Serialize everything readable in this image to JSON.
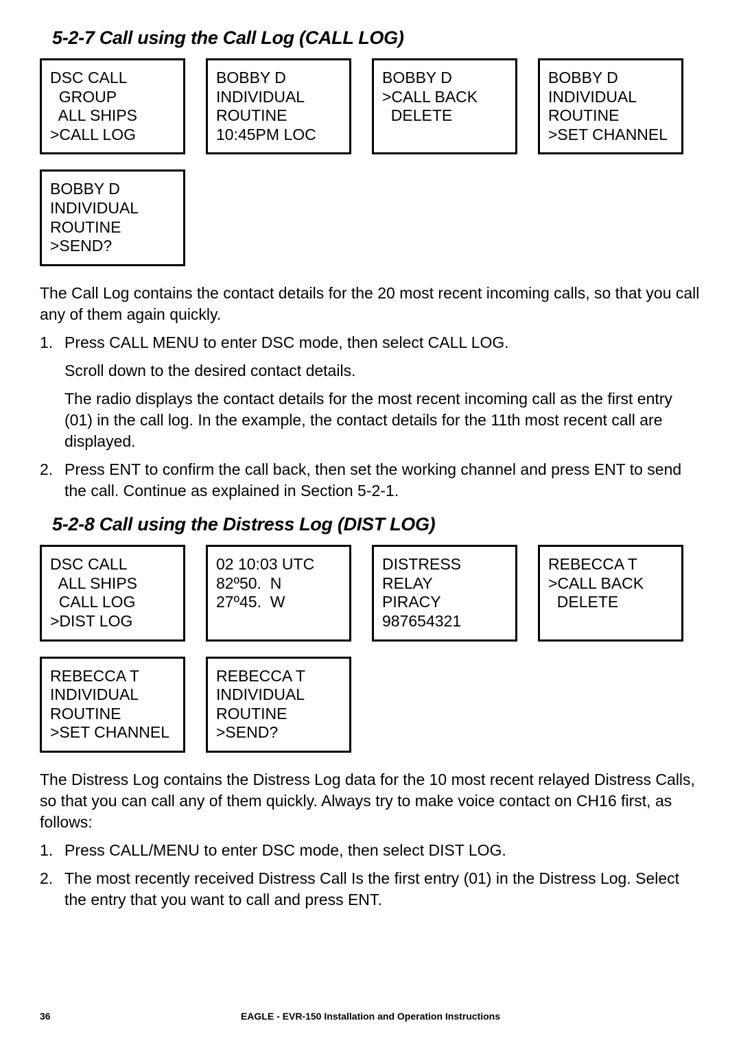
{
  "section527": {
    "title": "5-2-7 Call using the Call Log (CALL LOG)",
    "screens": [
      {
        "lines": [
          "DSC CALL",
          "  GROUP",
          "  ALL SHIPS",
          ">CALL LOG"
        ]
      },
      {
        "lines": [
          "BOBBY D",
          "INDIVIDUAL",
          "ROUTINE",
          "10:45PM LOC"
        ]
      },
      {
        "lines": [
          "BOBBY D",
          ">CALL BACK",
          "  DELETE"
        ]
      },
      {
        "lines": [
          "BOBBY D",
          "INDIVIDUAL",
          "ROUTINE",
          ">SET CHANNEL"
        ]
      },
      {
        "lines": [
          "BOBBY D",
          "INDIVIDUAL",
          "ROUTINE",
          ">SEND?"
        ]
      }
    ],
    "intro": "The Call Log contains the contact details for the 20 most recent incoming calls, so that you call any of them again quickly.",
    "steps": [
      {
        "paras": [
          "Press CALL MENU to enter DSC mode, then select CALL LOG.",
          "Scroll down to the desired contact details.",
          "The radio displays the contact details for the most recent incoming call as the first entry (01) in the call log. In the example, the contact details for the 11th most recent call are displayed."
        ]
      },
      {
        "paras": [
          "Press ENT to confirm the call back, then set the working channel and press ENT to send the call. Continue as explained in Section 5-2-1."
        ]
      }
    ]
  },
  "section528": {
    "title": "5-2-8 Call using the Distress Log (DIST LOG)",
    "screens": [
      {
        "lines": [
          "DSC CALL",
          "  ALL SHIPS",
          "  CALL LOG",
          ">DIST LOG"
        ]
      },
      {
        "lines": [
          "02 10:03 UTC",
          "82º50.  N",
          "27º45.  W"
        ]
      },
      {
        "lines": [
          "DISTRESS",
          "RELAY",
          "PIRACY",
          "987654321"
        ]
      },
      {
        "lines": [
          "REBECCA T",
          ">CALL BACK",
          "  DELETE"
        ]
      },
      {
        "lines": [
          "REBECCA T",
          "INDIVIDUAL",
          "ROUTINE",
          ">SET CHANNEL"
        ]
      },
      {
        "lines": [
          "REBECCA T",
          "INDIVIDUAL",
          "ROUTINE",
          ">SEND?"
        ]
      }
    ],
    "intro": "The Distress Log contains the Distress Log data for the 10 most recent relayed Distress Calls, so that you can call any of them quickly. Always try to make voice contact on CH16 first, as follows:",
    "steps": [
      {
        "paras": [
          "Press CALL/MENU to enter DSC mode, then select DIST LOG."
        ]
      },
      {
        "paras": [
          "The most recently received Distress Call Is the first entry (01) in the Distress Log. Select the entry that you want to call and press ENT."
        ]
      }
    ]
  },
  "footer": {
    "page": "36",
    "text": "EAGLE - EVR-150 Installation and Operation Instructions"
  }
}
